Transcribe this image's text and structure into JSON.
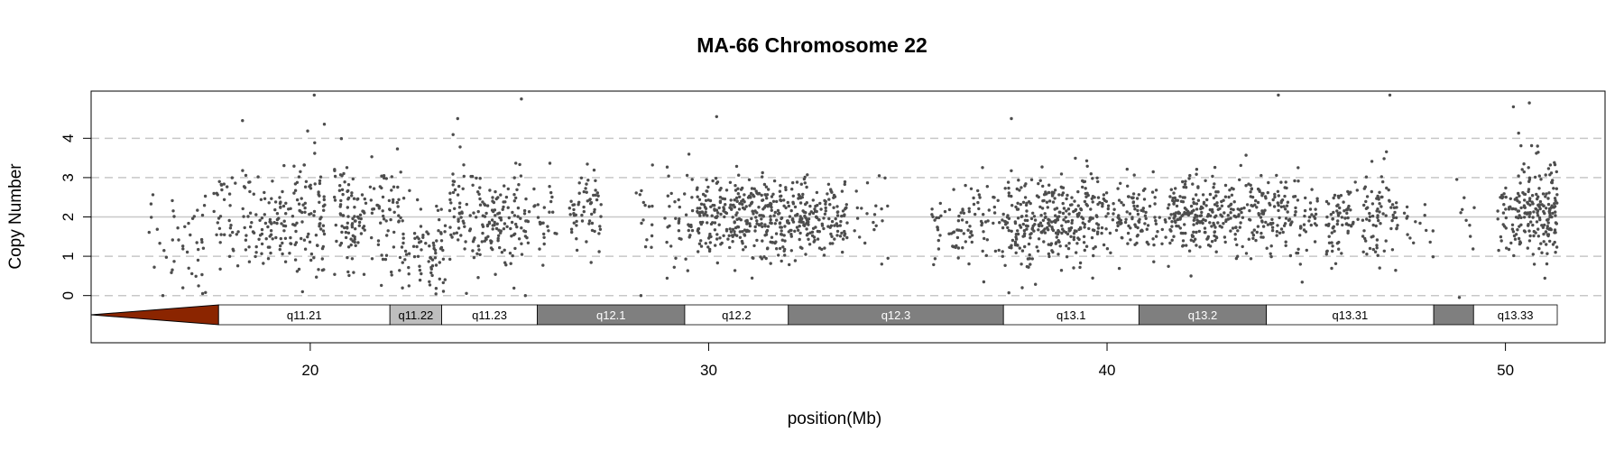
{
  "chart_data": {
    "type": "scatter",
    "title": "MA-66  Chromosome 22",
    "xlabel": "position(Mb)",
    "ylabel": "Copy Number",
    "xlim": [
      14.5,
      52.5
    ],
    "ylim": [
      -1.2,
      5.2
    ],
    "x_ticks": [
      20,
      30,
      40,
      50
    ],
    "y_ticks": [
      0,
      1,
      2,
      3,
      4
    ],
    "dashed_reference_lines": [
      0,
      1,
      3,
      4
    ],
    "solid_reference_line": 2,
    "point_color": "#4d4d4d",
    "centromere_color": "#8b2500",
    "centromere": {
      "start_mb": 14.5,
      "end_mb": 17.7
    },
    "bands": [
      {
        "name": "q11.21",
        "start_mb": 17.7,
        "end_mb": 22.0,
        "stain": "white"
      },
      {
        "name": "q11.22",
        "start_mb": 22.0,
        "end_mb": 23.3,
        "stain": "light"
      },
      {
        "name": "q11.23",
        "start_mb": 23.3,
        "end_mb": 25.7,
        "stain": "white"
      },
      {
        "name": "q12.1",
        "start_mb": 25.7,
        "end_mb": 29.4,
        "stain": "dark"
      },
      {
        "name": "q12.2",
        "start_mb": 29.4,
        "end_mb": 32.0,
        "stain": "white"
      },
      {
        "name": "q12.3",
        "start_mb": 32.0,
        "end_mb": 37.4,
        "stain": "dark"
      },
      {
        "name": "q13.1",
        "start_mb": 37.4,
        "end_mb": 40.8,
        "stain": "white"
      },
      {
        "name": "q13.2",
        "start_mb": 40.8,
        "end_mb": 44.0,
        "stain": "dark"
      },
      {
        "name": "q13.31",
        "start_mb": 44.0,
        "end_mb": 48.2,
        "stain": "white"
      },
      {
        "name": "",
        "start_mb": 48.2,
        "end_mb": 49.2,
        "stain": "dark"
      },
      {
        "name": "q13.33",
        "start_mb": 49.2,
        "end_mb": 51.3,
        "stain": "white"
      }
    ],
    "probe_clusters": [
      {
        "x_start": 15.8,
        "x_end": 16.7,
        "n": 18,
        "mean": 1.7,
        "sd": 0.7
      },
      {
        "x_start": 16.8,
        "x_end": 17.4,
        "n": 25,
        "mean": 1.5,
        "sd": 0.8
      },
      {
        "x_start": 17.5,
        "x_end": 18.2,
        "n": 35,
        "mean": 2.0,
        "sd": 0.55
      },
      {
        "x_start": 18.3,
        "x_end": 19.0,
        "n": 50,
        "mean": 1.8,
        "sd": 0.65
      },
      {
        "x_start": 19.0,
        "x_end": 19.8,
        "n": 70,
        "mean": 2.0,
        "sd": 0.6
      },
      {
        "x_start": 19.8,
        "x_end": 20.4,
        "n": 60,
        "mean": 2.2,
        "sd": 0.75
      },
      {
        "x_start": 20.6,
        "x_end": 21.4,
        "n": 90,
        "mean": 1.9,
        "sd": 0.65
      },
      {
        "x_start": 21.5,
        "x_end": 22.3,
        "n": 60,
        "mean": 2.1,
        "sd": 0.7
      },
      {
        "x_start": 22.3,
        "x_end": 23.4,
        "n": 80,
        "mean": 1.2,
        "sd": 0.55
      },
      {
        "x_start": 23.5,
        "x_end": 24.3,
        "n": 70,
        "mean": 2.0,
        "sd": 0.7
      },
      {
        "x_start": 24.3,
        "x_end": 25.3,
        "n": 100,
        "mean": 1.9,
        "sd": 0.6
      },
      {
        "x_start": 25.3,
        "x_end": 26.2,
        "n": 40,
        "mean": 1.9,
        "sd": 0.55
      },
      {
        "x_start": 26.5,
        "x_end": 27.3,
        "n": 60,
        "mean": 2.0,
        "sd": 0.5
      },
      {
        "x_start": 28.1,
        "x_end": 28.6,
        "n": 15,
        "mean": 1.9,
        "sd": 0.7
      },
      {
        "x_start": 28.9,
        "x_end": 29.6,
        "n": 40,
        "mean": 1.9,
        "sd": 0.7
      },
      {
        "x_start": 29.7,
        "x_end": 30.6,
        "n": 110,
        "mean": 2.0,
        "sd": 0.55
      },
      {
        "x_start": 30.6,
        "x_end": 31.5,
        "n": 140,
        "mean": 2.0,
        "sd": 0.55
      },
      {
        "x_start": 31.5,
        "x_end": 32.5,
        "n": 140,
        "mean": 2.0,
        "sd": 0.5
      },
      {
        "x_start": 32.5,
        "x_end": 33.5,
        "n": 100,
        "mean": 1.9,
        "sd": 0.45
      },
      {
        "x_start": 33.6,
        "x_end": 34.5,
        "n": 20,
        "mean": 2.0,
        "sd": 0.4
      },
      {
        "x_start": 35.6,
        "x_end": 36.4,
        "n": 40,
        "mean": 1.8,
        "sd": 0.5
      },
      {
        "x_start": 36.4,
        "x_end": 37.5,
        "n": 60,
        "mean": 1.9,
        "sd": 0.55
      },
      {
        "x_start": 37.5,
        "x_end": 38.6,
        "n": 140,
        "mean": 1.9,
        "sd": 0.55
      },
      {
        "x_start": 38.6,
        "x_end": 39.6,
        "n": 140,
        "mean": 2.0,
        "sd": 0.55
      },
      {
        "x_start": 39.6,
        "x_end": 40.7,
        "n": 90,
        "mean": 1.9,
        "sd": 0.6
      },
      {
        "x_start": 40.7,
        "x_end": 41.6,
        "n": 60,
        "mean": 1.9,
        "sd": 0.5
      },
      {
        "x_start": 41.6,
        "x_end": 42.8,
        "n": 170,
        "mean": 2.0,
        "sd": 0.5
      },
      {
        "x_start": 42.8,
        "x_end": 44.0,
        "n": 110,
        "mean": 2.0,
        "sd": 0.5
      },
      {
        "x_start": 44.0,
        "x_end": 45.3,
        "n": 100,
        "mean": 2.0,
        "sd": 0.5
      },
      {
        "x_start": 45.5,
        "x_end": 46.3,
        "n": 70,
        "mean": 2.0,
        "sd": 0.5
      },
      {
        "x_start": 46.4,
        "x_end": 47.3,
        "n": 80,
        "mean": 2.1,
        "sd": 0.55
      },
      {
        "x_start": 47.4,
        "x_end": 48.2,
        "n": 15,
        "mean": 1.8,
        "sd": 0.5
      },
      {
        "x_start": 48.7,
        "x_end": 49.3,
        "n": 10,
        "mean": 1.7,
        "sd": 0.6
      },
      {
        "x_start": 49.8,
        "x_end": 50.3,
        "n": 40,
        "mean": 2.1,
        "sd": 0.6
      },
      {
        "x_start": 50.3,
        "x_end": 51.3,
        "n": 180,
        "mean": 2.2,
        "sd": 0.65
      }
    ],
    "outlier_points": [
      {
        "x": 20.1,
        "y": 5.1
      },
      {
        "x": 25.3,
        "y": 5.0
      },
      {
        "x": 44.3,
        "y": 5.1
      },
      {
        "x": 47.1,
        "y": 5.1
      },
      {
        "x": 50.2,
        "y": 4.8
      },
      {
        "x": 50.6,
        "y": 4.9
      },
      {
        "x": 37.6,
        "y": 4.5
      },
      {
        "x": 30.2,
        "y": 4.55
      },
      {
        "x": 18.3,
        "y": 4.45
      },
      {
        "x": 23.7,
        "y": 4.5
      },
      {
        "x": 28.3,
        "y": 0.0
      },
      {
        "x": 17.3,
        "y": 0.05
      },
      {
        "x": 16.3,
        "y": 0.0
      },
      {
        "x": 25.4,
        "y": 0.0
      },
      {
        "x": 34.5,
        "y": 0.95
      }
    ]
  }
}
